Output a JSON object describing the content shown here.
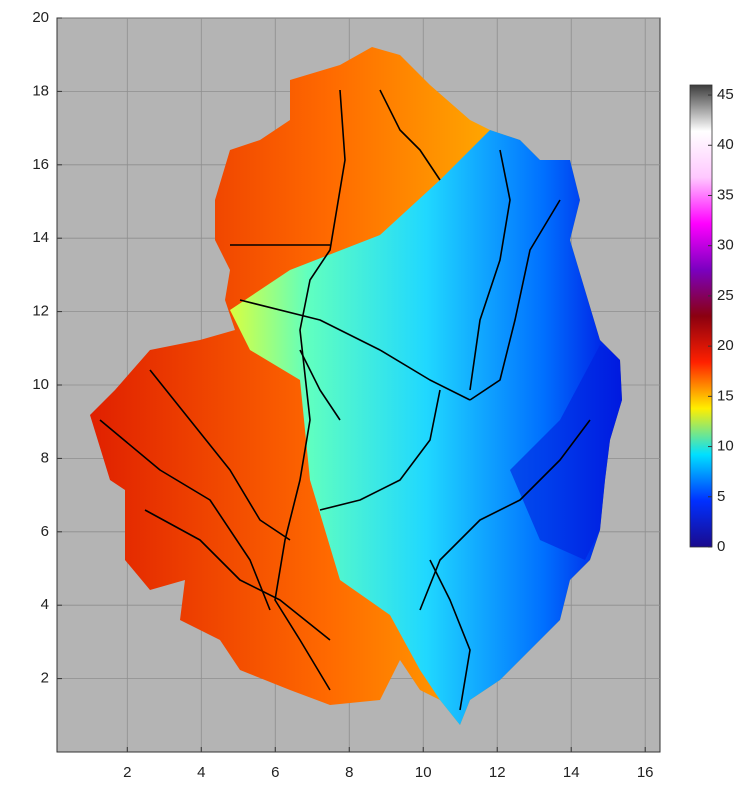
{
  "chart_data": {
    "type": "heatmap",
    "xlim": [
      0.1,
      16.4
    ],
    "ylim": [
      0,
      20
    ],
    "xticks": [
      2,
      4,
      6,
      8,
      10,
      12,
      14,
      16
    ],
    "yticks": [
      2,
      4,
      6,
      8,
      10,
      12,
      14,
      16,
      18,
      20
    ],
    "grid": true,
    "colorbar": {
      "lim": [
        0,
        46
      ],
      "ticks": [
        0,
        5,
        10,
        15,
        20,
        25,
        30,
        35,
        40,
        45
      ],
      "colors": [
        "#1a0a8c",
        "#0030ff",
        "#00e0ff",
        "#ffee00",
        "#ff2000",
        "#8b0010",
        "#7a00c0",
        "#ff00ff",
        "#ffc8ff",
        "#ffffff",
        "#3c3c3c"
      ]
    }
  }
}
